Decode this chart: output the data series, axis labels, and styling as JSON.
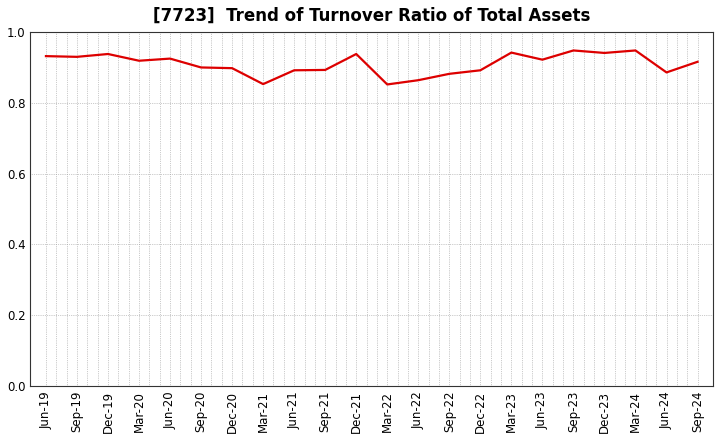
{
  "title": "[7723]  Trend of Turnover Ratio of Total Assets",
  "x_labels": [
    "Jun-19",
    "Sep-19",
    "Dec-19",
    "Mar-20",
    "Jun-20",
    "Sep-20",
    "Dec-20",
    "Mar-21",
    "Jun-21",
    "Sep-21",
    "Dec-21",
    "Mar-22",
    "Jun-22",
    "Sep-22",
    "Dec-22",
    "Mar-23",
    "Jun-23",
    "Sep-23",
    "Dec-23",
    "Mar-24",
    "Jun-24",
    "Sep-24"
  ],
  "values": [
    0.932,
    0.93,
    0.938,
    0.919,
    0.925,
    0.9,
    0.898,
    0.853,
    0.892,
    0.893,
    0.938,
    0.852,
    0.864,
    0.882,
    0.892,
    0.942,
    0.922,
    0.948,
    0.941,
    0.948,
    0.886,
    0.916
  ],
  "line_color": "#dd0000",
  "line_width": 1.6,
  "ylim": [
    0.0,
    1.0
  ],
  "yticks": [
    0.0,
    0.2,
    0.4,
    0.6,
    0.8,
    1.0
  ],
  "background_color": "#ffffff",
  "grid_color": "#999999",
  "title_fontsize": 12,
  "tick_fontsize": 8.5
}
